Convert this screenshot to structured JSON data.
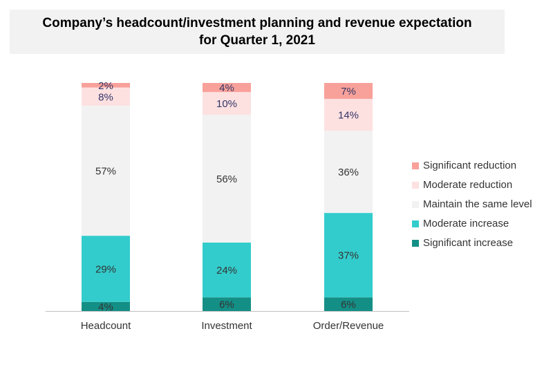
{
  "chart_data": {
    "type": "bar",
    "stacked": true,
    "title": "Company’s headcount/investment planning and revenue expectation",
    "subtitle": "for Quarter 1, 2021",
    "categories": [
      "Headcount",
      "Investment",
      "Order/Revenue"
    ],
    "series": [
      {
        "name": "Significant increase",
        "color": "#148f86",
        "label_color": "#333333",
        "values": [
          4,
          6,
          6
        ]
      },
      {
        "name": "Moderate increase",
        "color": "#33cccc",
        "label_color": "#333333",
        "values": [
          29,
          24,
          37
        ]
      },
      {
        "name": "Maintain the same level",
        "color": "#f2f2f2",
        "label_color": "#333333",
        "values": [
          57,
          56,
          36
        ]
      },
      {
        "name": "Moderate reduction",
        "color": "#fde1e1",
        "label_color": "#333366",
        "values": [
          8,
          10,
          14
        ]
      },
      {
        "name": "Significant reduction",
        "color": "#f8a19a",
        "label_color": "#333366",
        "values": [
          2,
          4,
          7
        ]
      }
    ],
    "legend_order": [
      "Significant reduction",
      "Moderate reduction",
      "Maintain the same level",
      "Moderate increase",
      "Significant increase"
    ],
    "value_suffix": "%",
    "legend_position": "right",
    "grid": false
  }
}
